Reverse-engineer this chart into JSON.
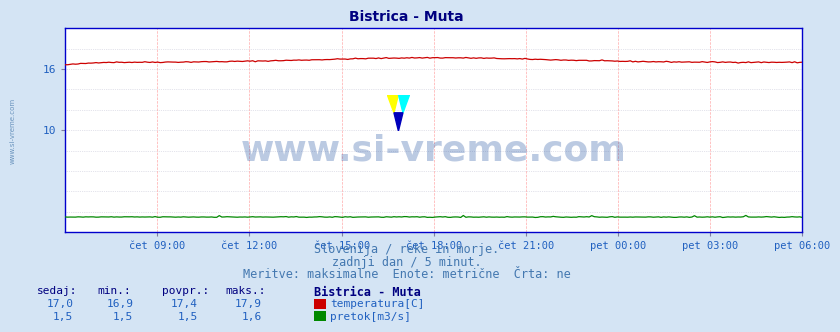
{
  "title": "Bistrica - Muta",
  "title_color": "#000080",
  "title_fontsize": 10,
  "bg_color": "#d4e4f4",
  "plot_bg_color": "#ffffff",
  "grid_color_h": "#c8c8d8",
  "grid_color_v": "#ffaaaa",
  "x_tick_labels": [
    "čet 09:00",
    "čet 12:00",
    "čet 15:00",
    "čet 18:00",
    "čet 21:00",
    "pet 00:00",
    "pet 03:00",
    "pet 06:00"
  ],
  "x_tick_positions": [
    0.125,
    0.25,
    0.375,
    0.5,
    0.625,
    0.75,
    0.875,
    1.0
  ],
  "ylim": [
    0,
    20
  ],
  "temp_color": "#cc0000",
  "flow_color": "#008800",
  "border_color": "#0000cc",
  "watermark_color": "#2050a0",
  "watermark_text": "www.si-vreme.com",
  "watermark_fontsize": 26,
  "subtitle1": "Slovenija / reke in morje.",
  "subtitle2": "zadnji dan / 5 minut.",
  "subtitle3": "Meritve: maksimalne  Enote: metrične  Črta: ne",
  "subtitle_color": "#4478b0",
  "subtitle_fontsize": 8.5,
  "table_header": [
    "sedaj:",
    "min.:",
    "povpr.:",
    "maks.:",
    "Bistrica - Muta"
  ],
  "table_temp": [
    "17,0",
    "16,9",
    "17,4",
    "17,9",
    "temperatura[C]"
  ],
  "table_flow": [
    "1,5",
    "1,5",
    "1,5",
    "1,6",
    "pretok[m3/s]"
  ],
  "table_color": "#2060c0",
  "table_header_color": "#000080",
  "n_points": 288
}
